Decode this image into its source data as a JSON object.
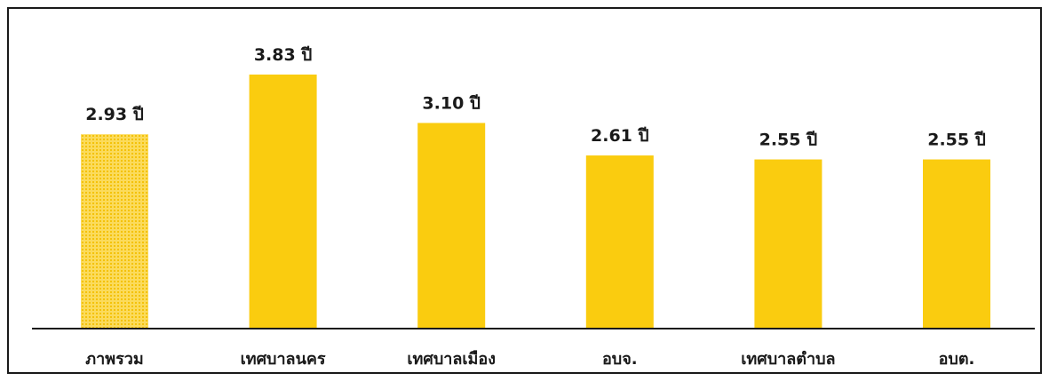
{
  "chart_data": {
    "type": "bar",
    "title": "",
    "xlabel": "",
    "ylabel": "",
    "categories": [
      "ภาพรวม",
      "เทศบาลนคร",
      "เทศบาลเมือง",
      "อบจ.",
      "เทศบาลตำบล",
      "อบต."
    ],
    "values": [
      2.93,
      3.83,
      3.1,
      2.61,
      2.55,
      2.55
    ],
    "value_labels": [
      "2.93 ปี",
      "3.83 ปี",
      "3.10 ปี",
      "2.61 ปี",
      "2.55 ปี",
      "2.55 ปี"
    ],
    "highlight_index": 0,
    "ylim": [
      0,
      4.9
    ],
    "grid": false,
    "legend": "none",
    "colors": {
      "bar": "#FACC0F",
      "highlight_bar": "#FBDB5C",
      "highlight_dots": "#F4C20A",
      "axis": "#1a1a1a",
      "text": "#1a1a1a"
    }
  }
}
